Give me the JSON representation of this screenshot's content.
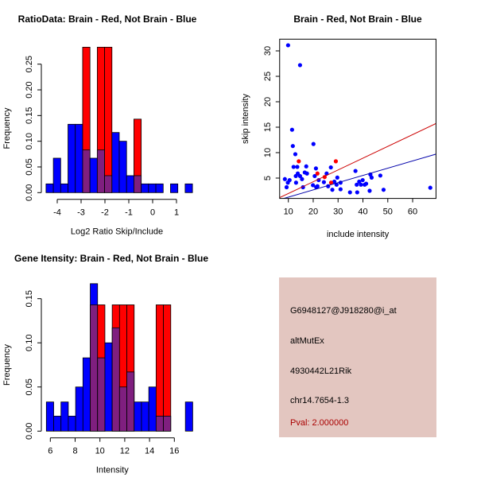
{
  "chart_data": [
    {
      "type": "bar",
      "title": "RatioData: Brain - Red, Not Brain - Blue",
      "xlabel": "Log2 Ratio Skip/Include",
      "ylabel": "Frequency",
      "bin_start": -4.47,
      "bin_width": 0.307,
      "xlim": [
        -4.47,
        1.67
      ],
      "ylim": [
        0,
        0.29
      ],
      "xticks": [
        -4,
        -3,
        -2,
        -1,
        0,
        1
      ],
      "yticks": [
        "0.00",
        "0.05",
        "0.10",
        "0.15",
        "0.20",
        "0.25"
      ],
      "series": [
        {
          "name": "Not Brain",
          "color": "#0000ff",
          "values": [
            0.017,
            0.067,
            0.017,
            0.133,
            0.133,
            0.083,
            0.067,
            0.083,
            0.033,
            0.117,
            0.1,
            0.033,
            0.033,
            0.017,
            0.017,
            0.017,
            0,
            0.017,
            0,
            0.017
          ]
        },
        {
          "name": "Brain",
          "color": "#ff0000",
          "values": [
            0,
            0,
            0,
            0,
            0,
            0.283,
            0,
            0.283,
            0.283,
            0,
            0,
            0,
            0.143,
            0,
            0,
            0,
            0,
            0,
            0,
            0
          ]
        }
      ],
      "overlap_color": "#7f1f7f"
    },
    {
      "type": "scatter",
      "title": "Brain - Red, Not Brain - Blue",
      "xlabel": "include intensity",
      "ylabel": "skip intensity",
      "xlim": [
        6.5,
        69.4
      ],
      "ylim": [
        1.0,
        32.3
      ],
      "xticks": [
        10,
        20,
        30,
        40,
        50,
        60
      ],
      "yticks": [
        5,
        10,
        15,
        20,
        25,
        30
      ],
      "series": [
        {
          "name": "Not Brain",
          "color": "#0000ff",
          "points": [
            [
              9.9,
              31.1
            ],
            [
              14.7,
              27.2
            ],
            [
              11.5,
              14.5
            ],
            [
              11.8,
              11.3
            ],
            [
              12.8,
              9.7
            ],
            [
              20.1,
              11.7
            ],
            [
              8.6,
              4.8
            ],
            [
              9.3,
              3.2
            ],
            [
              9.8,
              4.1
            ],
            [
              10.5,
              4.6
            ],
            [
              12.1,
              7.2
            ],
            [
              13.6,
              7.2
            ],
            [
              13.1,
              4.1
            ],
            [
              13,
              5.4
            ],
            [
              13.8,
              5.9
            ],
            [
              14.7,
              5.4
            ],
            [
              15.5,
              4.8
            ],
            [
              15.9,
              3.2
            ],
            [
              16.6,
              6.1
            ],
            [
              17.2,
              7.3
            ],
            [
              17.5,
              5.9
            ],
            [
              19.9,
              3.6
            ],
            [
              20.6,
              5.4
            ],
            [
              21.1,
              6.9
            ],
            [
              21.2,
              3.2
            ],
            [
              21.7,
              3.4
            ],
            [
              22.2,
              4.6
            ],
            [
              24.3,
              4.2
            ],
            [
              25.4,
              5.9
            ],
            [
              26,
              3.4
            ],
            [
              27.1,
              7.1
            ],
            [
              27.7,
              2.7
            ],
            [
              28.5,
              4.3
            ],
            [
              29.4,
              3.7
            ],
            [
              29.7,
              5.1
            ],
            [
              31,
              4.1
            ],
            [
              31,
              2.8
            ],
            [
              34.8,
              2.2
            ],
            [
              37,
              6.4
            ],
            [
              37.5,
              3.7
            ],
            [
              37.7,
              2.2
            ],
            [
              38.5,
              4.3
            ],
            [
              39.2,
              3.7
            ],
            [
              39.9,
              4.6
            ],
            [
              40.7,
              3.7
            ],
            [
              41.3,
              3.9
            ],
            [
              42.7,
              2.5
            ],
            [
              43,
              5.7
            ],
            [
              43.5,
              5.1
            ],
            [
              47,
              5.5
            ],
            [
              48.3,
              2.7
            ],
            [
              67.1,
              3.1
            ]
          ]
        },
        {
          "name": "Brain",
          "color": "#ff0000",
          "points": [
            [
              14.2,
              8.3
            ],
            [
              29.1,
              8.3
            ],
            [
              21.7,
              5.9
            ],
            [
              24.6,
              5.2
            ],
            [
              27.2,
              4.1
            ]
          ]
        }
      ],
      "lines": [
        {
          "name": "Brain fit",
          "color": "#cc0000",
          "intercept": -0.35,
          "slope": 0.2316
        },
        {
          "name": "Not Brain fit",
          "color": "#0000aa",
          "intercept": -0.17,
          "slope": 0.1424
        }
      ]
    },
    {
      "type": "bar",
      "title": "Gene Itensity: Brain - Red, Not Brain - Blue",
      "xlabel": "Intensity",
      "ylabel": "Frequency",
      "bin_start": 5.68,
      "bin_width": 0.59,
      "xlim": [
        5.68,
        17.48
      ],
      "ylim": [
        0,
        0.17
      ],
      "xticks": [
        6,
        8,
        10,
        12,
        14,
        16
      ],
      "yticks": [
        "0.00",
        "0.05",
        "0.10",
        "0.15"
      ],
      "series": [
        {
          "name": "Not Brain",
          "color": "#0000ff",
          "values": [
            0.033,
            0.017,
            0.033,
            0.017,
            0.05,
            0.083,
            0.167,
            0.083,
            0.1,
            0.117,
            0.05,
            0.067,
            0.033,
            0.033,
            0.05,
            0.017,
            0.017,
            0,
            0,
            0.033
          ]
        },
        {
          "name": "Brain",
          "color": "#ff0000",
          "values": [
            0,
            0,
            0,
            0,
            0,
            0,
            0.143,
            0.143,
            0,
            0.143,
            0.143,
            0.143,
            0,
            0,
            0,
            0.143,
            0.143,
            0,
            0,
            0
          ]
        }
      ],
      "overlap_color": "#7f1f7f"
    }
  ],
  "info_panel": {
    "probe": "G6948127@J918280@i_at",
    "event_type": "altMutEx",
    "gene": "4930442L21Rik",
    "location": "chr14.7654-1.3",
    "pval": "Pval: 2.000000",
    "background": "#e3c6c0",
    "pval_color": "#aa0000"
  }
}
